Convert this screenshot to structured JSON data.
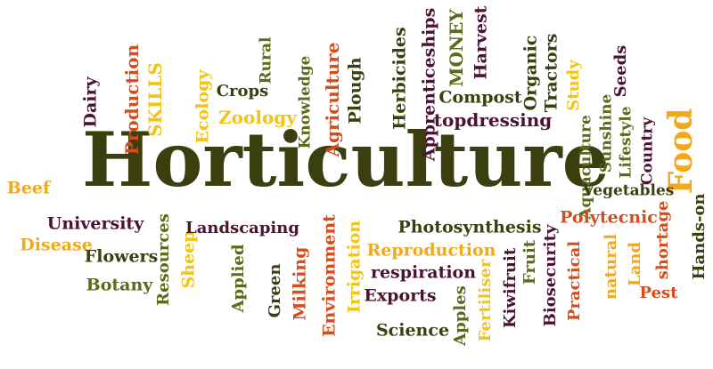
{
  "words": [
    {
      "text": "Horticulture",
      "color": "#3b3f10"
    },
    {
      "text": "Food",
      "color": "#f2a81e"
    },
    {
      "text": "Dairy",
      "color": "#4b1232"
    },
    {
      "text": "Production",
      "color": "#d64d1d"
    },
    {
      "text": "SKILLS",
      "color": "#f3c318"
    },
    {
      "text": "Ecology",
      "color": "#f3c318"
    },
    {
      "text": "Crops",
      "color": "#3b3f10"
    },
    {
      "text": "Zoology",
      "color": "#f3c318"
    },
    {
      "text": "Rural",
      "color": "#5a6b1a"
    },
    {
      "text": "Knowledge",
      "color": "#5a6b1a"
    },
    {
      "text": "Agriculture",
      "color": "#d64d1d"
    },
    {
      "text": "Plough",
      "color": "#3b3f10"
    },
    {
      "text": "Herbicides",
      "color": "#3b3f10"
    },
    {
      "text": "Apprenticeships",
      "color": "#4b1232"
    },
    {
      "text": "MONEY",
      "color": "#5a6b1a"
    },
    {
      "text": "Harvest",
      "color": "#4b1232"
    },
    {
      "text": "Compost",
      "color": "#3b3f10"
    },
    {
      "text": "Organic",
      "color": "#3b3f10"
    },
    {
      "text": "Tractors",
      "color": "#3b3f10"
    },
    {
      "text": "topdressing",
      "color": "#4b1232"
    },
    {
      "text": "Study",
      "color": "#f3c318"
    },
    {
      "text": "Seeds",
      "color": "#4b1232"
    },
    {
      "text": "Sunshine",
      "color": "#5a6b1a"
    },
    {
      "text": "Lifestyle",
      "color": "#5a6b1a"
    },
    {
      "text": "Country",
      "color": "#4b1232"
    },
    {
      "text": "Aquaculture",
      "color": "#5a6b1a"
    },
    {
      "text": "Vegetables",
      "color": "#3b3f10"
    },
    {
      "text": "Beef",
      "color": "#f2a81e"
    },
    {
      "text": "University",
      "color": "#4b1232"
    },
    {
      "text": "Disease",
      "color": "#f2a81e"
    },
    {
      "text": "Flowers",
      "color": "#3b3f10"
    },
    {
      "text": "Botany",
      "color": "#5a6b1a"
    },
    {
      "text": "Resources",
      "color": "#5a6b1a"
    },
    {
      "text": "Sheep",
      "color": "#f3c318"
    },
    {
      "text": "Landscaping",
      "color": "#4b1232"
    },
    {
      "text": "Applied",
      "color": "#5a6b1a"
    },
    {
      "text": "Green",
      "color": "#3b3f10"
    },
    {
      "text": "Milking",
      "color": "#d64d1d"
    },
    {
      "text": "Environment",
      "color": "#d64d1d"
    },
    {
      "text": "Irrigation",
      "color": "#f3c318"
    },
    {
      "text": "Photosynthesis",
      "color": "#3b3f10"
    },
    {
      "text": "Reproduction",
      "color": "#f2a81e"
    },
    {
      "text": "respiration",
      "color": "#4b1232"
    },
    {
      "text": "Exports",
      "color": "#4b1232"
    },
    {
      "text": "Science",
      "color": "#3b3f10"
    },
    {
      "text": "Apples",
      "color": "#5a6b1a"
    },
    {
      "text": "Fertiliser",
      "color": "#f3c318"
    },
    {
      "text": "Kiwifruit",
      "color": "#4b1232"
    },
    {
      "text": "Fruit",
      "color": "#5a6b1a"
    },
    {
      "text": "Biosecurity",
      "color": "#4b1232"
    },
    {
      "text": "Polytecnic",
      "color": "#d64d1d"
    },
    {
      "text": "Practical",
      "color": "#d64d1d"
    },
    {
      "text": "natural",
      "color": "#f2a81e"
    },
    {
      "text": "Land",
      "color": "#f2a81e"
    },
    {
      "text": "shortage",
      "color": "#d64d1d"
    },
    {
      "text": "Pest",
      "color": "#d64d1d"
    },
    {
      "text": "Hands-on",
      "color": "#3b3f10"
    }
  ]
}
